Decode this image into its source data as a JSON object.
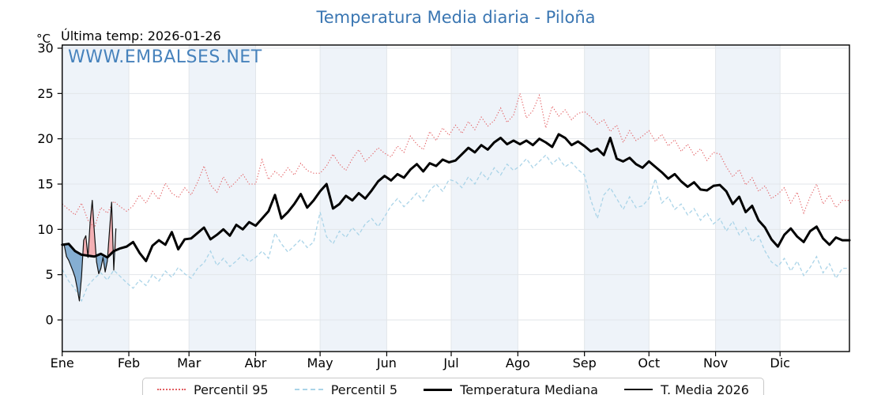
{
  "header": {
    "last_temp_label": "Última temp: 2026-01-26",
    "unit_label": "°C",
    "watermark": "WWW.EMBALSES.NET"
  },
  "legend": {
    "items": [
      {
        "label": "Percentil 95",
        "style": "dotted",
        "color": "#e36064"
      },
      {
        "label": "Percentil 5",
        "style": "dashed",
        "color": "#aad4e8"
      },
      {
        "label": "Temperatura Mediana",
        "style": "thick-solid",
        "color": "#000000"
      },
      {
        "label": "T. Media 2026",
        "style": "thin-solid",
        "color": "#111111"
      }
    ]
  },
  "chart_data": {
    "type": "line",
    "title": "Temperatura Media diaria - Piloña",
    "xlabel": "",
    "ylabel": "°C",
    "grid": true,
    "legend_position": "bottom",
    "x_axis": {
      "tick_labels": [
        "Ene",
        "Feb",
        "Mar",
        "Abr",
        "May",
        "Jun",
        "Jul",
        "Ago",
        "Sep",
        "Oct",
        "Nov",
        "Dic"
      ],
      "month_start_days": [
        1,
        32,
        60,
        91,
        121,
        152,
        182,
        213,
        244,
        274,
        305,
        335
      ],
      "days_in_year": 365,
      "shaded_months": [
        "Ene",
        "Mar",
        "May",
        "Jul",
        "Sep",
        "Nov"
      ]
    },
    "y_axis": {
      "ticks": [
        0,
        5,
        10,
        15,
        20,
        25,
        30
      ],
      "range_min": -3.5,
      "range_max": 30.4
    },
    "sample_days": [
      1,
      4,
      7,
      10,
      13,
      16,
      19,
      22,
      25,
      28,
      31,
      34,
      37,
      40,
      43,
      46,
      49,
      52,
      55,
      58,
      61,
      64,
      67,
      70,
      73,
      76,
      79,
      82,
      85,
      88,
      91,
      94,
      97,
      100,
      103,
      106,
      109,
      112,
      115,
      118,
      121,
      124,
      127,
      130,
      133,
      136,
      139,
      142,
      145,
      148,
      151,
      154,
      157,
      160,
      163,
      166,
      169,
      172,
      175,
      178,
      181,
      184,
      187,
      190,
      193,
      196,
      199,
      202,
      205,
      208,
      211,
      214,
      217,
      220,
      223,
      226,
      229,
      232,
      235,
      238,
      241,
      244,
      247,
      250,
      253,
      256,
      259,
      262,
      265,
      268,
      271,
      274,
      277,
      280,
      283,
      286,
      289,
      292,
      295,
      298,
      301,
      304,
      307,
      310,
      313,
      316,
      319,
      322,
      325,
      328,
      331,
      334,
      337,
      340,
      343,
      346,
      349,
      352,
      355,
      358,
      361,
      364
    ],
    "series": {
      "percentil95": {
        "label": "Percentil 95",
        "color": "#e36064",
        "style": "dotted",
        "values": [
          12.8,
          12.2,
          11.6,
          12.9,
          11.0,
          10.2,
          12.4,
          11.8,
          13.1,
          12.5,
          12.0,
          12.6,
          13.8,
          12.9,
          14.2,
          13.3,
          15.1,
          14.0,
          13.5,
          14.6,
          13.8,
          15.2,
          17.0,
          14.9,
          14.1,
          15.8,
          14.6,
          15.3,
          16.1,
          15.0,
          15.0,
          17.7,
          15.5,
          16.4,
          15.8,
          16.8,
          16.0,
          17.3,
          16.5,
          16.2,
          16.2,
          17.0,
          18.3,
          17.2,
          16.5,
          17.8,
          18.8,
          17.5,
          18.2,
          19.0,
          18.4,
          18.0,
          19.2,
          18.5,
          20.3,
          19.4,
          18.8,
          20.8,
          19.8,
          21.2,
          20.4,
          21.5,
          20.6,
          21.9,
          21.0,
          22.4,
          21.4,
          22.0,
          23.4,
          21.8,
          22.6,
          25.0,
          22.3,
          23.1,
          24.8,
          21.2,
          23.6,
          22.5,
          23.2,
          22.1,
          22.8,
          23.0,
          22.4,
          21.6,
          22.1,
          20.8,
          21.5,
          19.6,
          20.9,
          19.8,
          20.3,
          20.9,
          19.7,
          20.5,
          19.2,
          19.9,
          18.6,
          19.4,
          18.2,
          18.9,
          17.6,
          18.5,
          18.3,
          16.9,
          15.8,
          16.6,
          14.9,
          15.7,
          14.2,
          14.8,
          13.4,
          13.9,
          14.6,
          12.9,
          14.1,
          11.8,
          13.6,
          15.0,
          12.8,
          13.8,
          12.4,
          13.2
        ]
      },
      "percentil5": {
        "label": "Percentil 5",
        "color": "#aad4e8",
        "style": "dashed",
        "values": [
          5.6,
          4.3,
          3.4,
          2.1,
          3.8,
          4.6,
          5.2,
          4.4,
          5.5,
          4.8,
          4.1,
          3.5,
          4.4,
          3.8,
          5.0,
          4.3,
          5.4,
          4.7,
          5.8,
          5.1,
          4.6,
          5.7,
          6.3,
          7.6,
          6.0,
          6.8,
          5.9,
          6.5,
          7.2,
          6.4,
          6.9,
          7.6,
          6.8,
          9.6,
          8.4,
          7.5,
          8.2,
          8.9,
          8.0,
          8.6,
          11.9,
          9.2,
          8.4,
          9.8,
          9.1,
          10.2,
          9.4,
          10.6,
          11.2,
          10.3,
          11.4,
          12.6,
          13.4,
          12.5,
          13.2,
          14.0,
          13.1,
          14.3,
          15.0,
          14.2,
          15.5,
          15.3,
          14.6,
          15.8,
          15.0,
          16.3,
          15.5,
          16.8,
          16.0,
          17.2,
          16.5,
          17.0,
          17.8,
          16.8,
          17.5,
          18.2,
          17.2,
          17.9,
          16.9,
          17.4,
          16.6,
          16.0,
          13.2,
          11.2,
          13.8,
          14.6,
          13.4,
          12.2,
          13.6,
          12.4,
          12.6,
          13.4,
          15.6,
          12.9,
          13.6,
          12.2,
          12.8,
          11.6,
          12.3,
          11.0,
          11.8,
          10.6,
          11.2,
          9.8,
          10.9,
          9.4,
          10.2,
          8.6,
          9.3,
          7.6,
          6.4,
          5.9,
          6.8,
          5.4,
          6.5,
          4.9,
          5.8,
          7.0,
          5.2,
          6.2,
          4.6,
          5.7
        ]
      },
      "mediana": {
        "label": "Temperatura Mediana",
        "color": "#000000",
        "style": "solid-thick",
        "values": [
          8.3,
          8.4,
          7.6,
          7.2,
          7.1,
          7.0,
          7.3,
          6.9,
          7.6,
          7.9,
          8.1,
          8.6,
          7.4,
          6.5,
          8.2,
          8.8,
          8.3,
          9.7,
          7.8,
          8.9,
          9.0,
          9.6,
          10.2,
          8.9,
          9.4,
          10.0,
          9.3,
          10.5,
          10.0,
          10.8,
          10.4,
          11.2,
          12.0,
          13.8,
          11.2,
          11.9,
          12.8,
          13.9,
          12.4,
          13.2,
          14.2,
          15.0,
          12.3,
          12.8,
          13.7,
          13.2,
          14.0,
          13.4,
          14.3,
          15.3,
          15.9,
          15.4,
          16.1,
          15.7,
          16.6,
          17.2,
          16.4,
          17.3,
          17.0,
          17.7,
          17.4,
          17.6,
          18.3,
          19.0,
          18.5,
          19.3,
          18.8,
          19.6,
          20.1,
          19.4,
          19.8,
          19.4,
          19.8,
          19.3,
          20.0,
          19.6,
          19.1,
          20.5,
          20.1,
          19.3,
          19.7,
          19.2,
          18.6,
          18.9,
          18.2,
          20.1,
          17.8,
          17.5,
          17.9,
          17.2,
          16.8,
          17.5,
          16.9,
          16.3,
          15.6,
          16.1,
          15.3,
          14.7,
          15.2,
          14.4,
          14.3,
          14.8,
          14.9,
          14.2,
          12.8,
          13.6,
          11.9,
          12.6,
          11.0,
          10.2,
          8.9,
          8.1,
          9.4,
          10.1,
          9.2,
          8.6,
          9.8,
          10.3,
          9.0,
          8.3,
          9.1,
          8.8
        ]
      },
      "t_media_2026": {
        "label": "T. Media 2026",
        "color": "#111111",
        "style": "solid-thin",
        "days": [
          1,
          2,
          3,
          4,
          5,
          6,
          7,
          8,
          9,
          10,
          11,
          12,
          13,
          14,
          15,
          16,
          17,
          18,
          19,
          20,
          21,
          22,
          23,
          24,
          25,
          26
        ],
        "values": [
          8.4,
          8.2,
          7.0,
          6.6,
          6.0,
          5.4,
          4.7,
          3.5,
          2.1,
          4.8,
          8.8,
          9.3,
          6.9,
          10.8,
          13.2,
          9.6,
          6.4,
          5.1,
          5.7,
          6.9,
          5.3,
          6.5,
          9.8,
          13.0,
          5.5,
          10.1
        ]
      }
    },
    "fill_above_median_color": "#f3b0b4",
    "fill_below_median_color": "#85aed2",
    "band_color": "#eef3f9",
    "grid_color": "#e2e6ea"
  }
}
